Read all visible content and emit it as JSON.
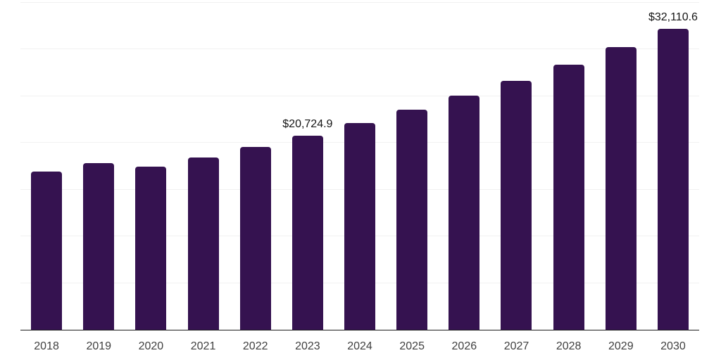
{
  "chart_data": {
    "type": "bar",
    "title": "",
    "xlabel": "",
    "ylabel": "",
    "categories": [
      "2018",
      "2019",
      "2020",
      "2021",
      "2022",
      "2023",
      "2024",
      "2025",
      "2026",
      "2027",
      "2028",
      "2029",
      "2030"
    ],
    "values": [
      16930.0,
      17820.0,
      17450.0,
      18420.0,
      19500.0,
      20724.9,
      22063.3,
      23488.1,
      25004.9,
      26619.7,
      28338.8,
      30168.9,
      32110.6
    ],
    "bar_labels": [
      "",
      "",
      "",
      "",
      "",
      "$20,724.9",
      "",
      "",
      "",
      "",
      "",
      "",
      "$32,110.6"
    ],
    "ylim": [
      0,
      35000
    ],
    "gridline_interval": 5000,
    "grid": "horizontal-only",
    "legend": "none",
    "colors": {
      "bar": "#351250",
      "grid_line": "#f1f1f1",
      "axis_line": "#1f1f1f",
      "data_label": "#141414",
      "tick_label": "#3f3f3f",
      "background": "#ffffff"
    }
  }
}
